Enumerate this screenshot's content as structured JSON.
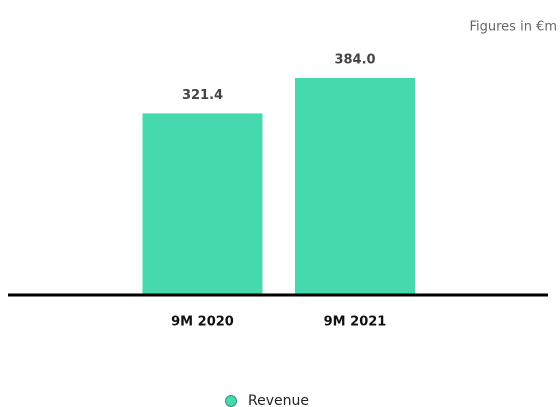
{
  "chart_data": {
    "type": "bar",
    "annotation": "Figures in €m",
    "categories": [
      "9M 2020",
      "9M 2021"
    ],
    "series": [
      {
        "name": "Revenue",
        "color": "#47d9ae",
        "values": [
          321.4,
          384
        ],
        "value_labels": [
          "321.4",
          "384.0"
        ]
      }
    ]
  }
}
